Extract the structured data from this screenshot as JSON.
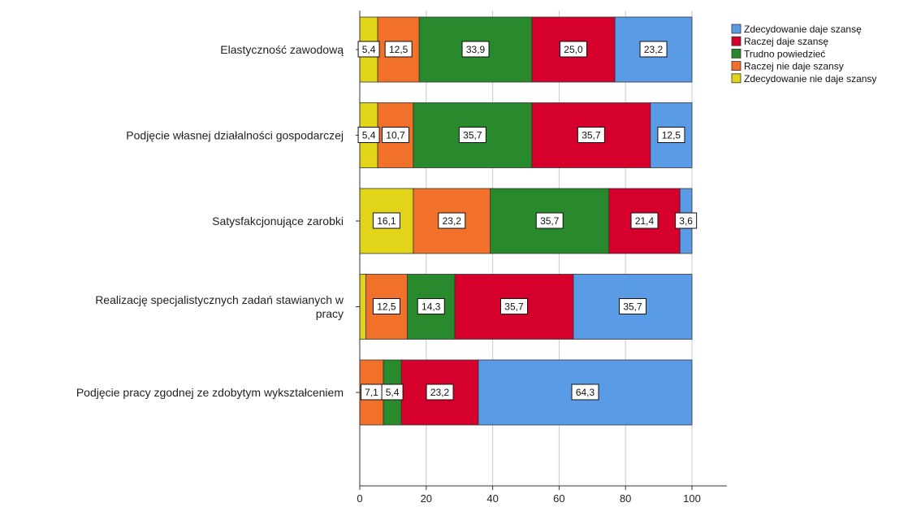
{
  "chart_data": {
    "type": "bar",
    "orientation": "horizontal",
    "stacked": true,
    "title": "",
    "xlabel": "",
    "ylabel": "",
    "xlim": [
      0,
      100
    ],
    "xticks": [
      "0",
      "20",
      "40",
      "60",
      "80",
      "100"
    ],
    "grid": true,
    "legend_position": "top-right",
    "categories": [
      "Elastyczność zawodową",
      "Podjęcie własnej działalności gospodarczej",
      "Satysfakcjonujące zarobki",
      "Realizację specjalistycznych zadań stawianych w pracy",
      "Podjęcie pracy zgodnej ze zdobytym wykształceniem"
    ],
    "category_lines": [
      [
        "Elastyczność zawodową"
      ],
      [
        "Podjęcie własnej działalności gospodarczej"
      ],
      [
        "Satysfakcjonujące zarobki"
      ],
      [
        "Realizację specjalistycznych zadań stawianych w",
        "pracy"
      ],
      [
        "Podjęcie pracy zgodnej ze zdobytym wykształceniem"
      ]
    ],
    "series": [
      {
        "name": "Zdecydowanie nie daje szansy",
        "color": "#e1d419",
        "values": [
          5.4,
          5.4,
          16.1,
          1.8,
          0
        ],
        "labels": [
          "5,4",
          "5,4",
          "16,1",
          "",
          ""
        ]
      },
      {
        "name": "Raczej nie daje szansy",
        "color": "#f2712a",
        "values": [
          12.5,
          10.7,
          23.2,
          12.5,
          7.1
        ],
        "labels": [
          "12,5",
          "10,7",
          "23,2",
          "12,5",
          "7,1"
        ]
      },
      {
        "name": "Trudno powiedzieć",
        "color": "#288a2c",
        "values": [
          33.9,
          35.7,
          35.7,
          14.3,
          5.4
        ],
        "labels": [
          "33,9",
          "35,7",
          "35,7",
          "14,3",
          "5,4"
        ]
      },
      {
        "name": "Raczej daje szansę",
        "color": "#d6002d",
        "values": [
          25.0,
          35.7,
          21.4,
          35.7,
          23.2
        ],
        "labels": [
          "25,0",
          "35,7",
          "21,4",
          "35,7",
          "23,2"
        ]
      },
      {
        "name": "Zdecydowanie daje szansę",
        "color": "#5a9be6",
        "values": [
          23.2,
          12.5,
          3.6,
          35.7,
          64.3
        ],
        "labels": [
          "23,2",
          "12,5",
          "3,6",
          "35,7",
          "64,3"
        ]
      }
    ],
    "legend_order": [
      "Zdecydowanie daje szansę",
      "Raczej daje szansę",
      "Trudno powiedzieć",
      "Raczej nie daje szansy",
      "Zdecydowanie nie daje szansy"
    ]
  }
}
